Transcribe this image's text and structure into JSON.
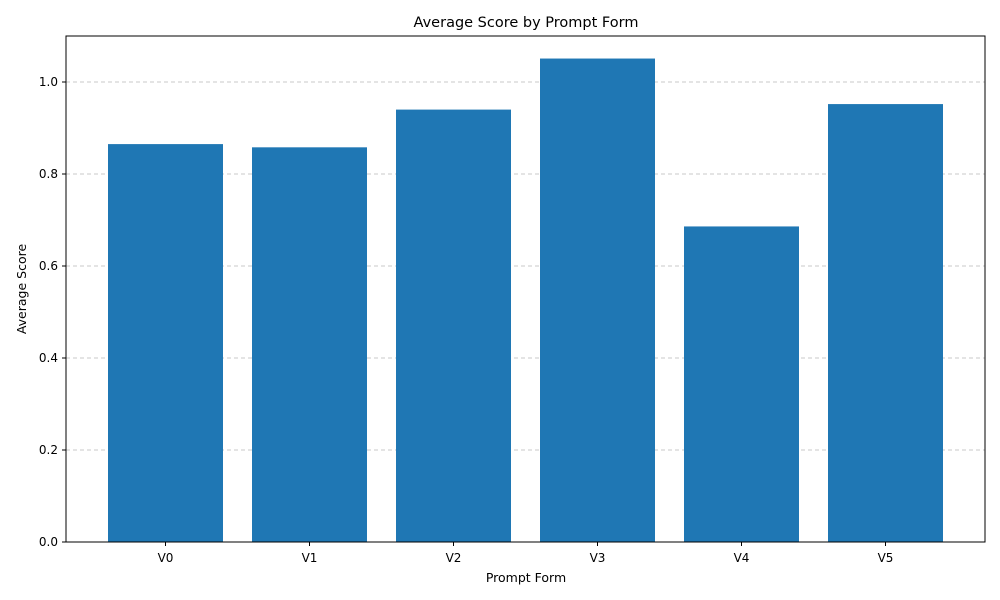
{
  "chart_data": {
    "type": "bar",
    "title": "Average Score by Prompt Form",
    "xlabel": "Prompt Form",
    "ylabel": "Average Score",
    "categories": [
      "V0",
      "V1",
      "V2",
      "V3",
      "V4",
      "V5"
    ],
    "values": [
      0.865,
      0.858,
      0.94,
      1.051,
      0.686,
      0.952
    ],
    "ylim": [
      0,
      1.1
    ],
    "yticks": [
      "0.0",
      "0.2",
      "0.4",
      "0.6",
      "0.8",
      "1.0"
    ],
    "grid": "y-dashed",
    "bar_color": "#1f77b4",
    "grid_color": "#c8c8c8"
  }
}
